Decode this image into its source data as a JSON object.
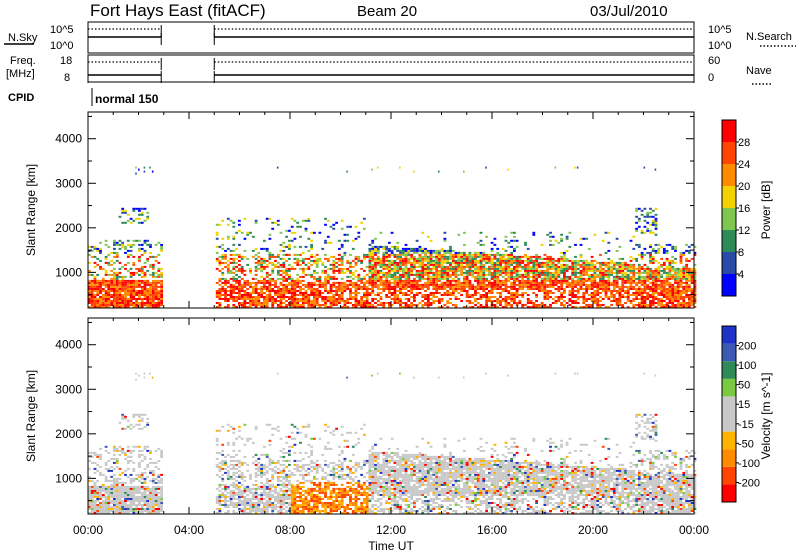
{
  "header": {
    "station": "Fort Hays East (fitACF)",
    "beam": "Beam 20",
    "date": "03/Jul/2010"
  },
  "panels": {
    "nsky": {
      "left_label": "N.Sky",
      "right_label": "N.Search",
      "left_ticks": [
        "10^5",
        "10^0"
      ],
      "right_ticks": [
        "10^5",
        "10^0"
      ]
    },
    "freq": {
      "left_label_top": "Freq.",
      "left_label_bottom": "[MHz]",
      "right_label": "Nave",
      "left_ticks": [
        "18",
        "8"
      ],
      "right_ticks": [
        "60",
        "0"
      ]
    },
    "cpid": {
      "label": "CPID",
      "value": "normal 150"
    }
  },
  "colors": {
    "power_scale": [
      "#0000ff",
      "#2a4aa8",
      "#2e8b57",
      "#7fc650",
      "#f2d200",
      "#ff8c00",
      "#ff4500",
      "#ff0000"
    ],
    "velocity_scale": [
      "#ff0000",
      "#ff4500",
      "#ff8c00",
      "#ffb300",
      "#c8c8c8",
      "#c8c8c8",
      "#7ac943",
      "#2e8b57",
      "#3c5ab4",
      "#1e32c8"
    ]
  },
  "chart_data": [
    {
      "type": "heatmap",
      "xlabel": "",
      "ylabel": "Slant Range [km]",
      "colorbar_label": "Power [dB]",
      "colorbar_ticks": [
        "4",
        "8",
        "12",
        "16",
        "20",
        "24",
        "28"
      ],
      "x_ticks": [
        "00:00",
        "04:00",
        "08:00",
        "12:00",
        "16:00",
        "20:00",
        "00:00"
      ],
      "y_ticks": [
        "1000",
        "2000",
        "3000",
        "4000"
      ],
      "ylim": [
        200,
        4600
      ],
      "data_gaps_hours": [
        [
          2.9,
          5.0
        ]
      ]
    },
    {
      "type": "heatmap",
      "xlabel": "Time UT",
      "ylabel": "Slant Range [km]",
      "colorbar_label": "Velocity [m s^-1]",
      "colorbar_ticks": [
        "200",
        "100",
        "50",
        "15",
        "-15",
        "-50",
        "-100",
        "-200"
      ],
      "x_ticks": [
        "00:00",
        "04:00",
        "08:00",
        "12:00",
        "16:00",
        "20:00",
        "00:00"
      ],
      "y_ticks": [
        "1000",
        "2000",
        "3000",
        "4000"
      ],
      "ylim": [
        200,
        4600
      ],
      "data_gaps_hours": [
        [
          2.9,
          5.0
        ]
      ]
    }
  ]
}
